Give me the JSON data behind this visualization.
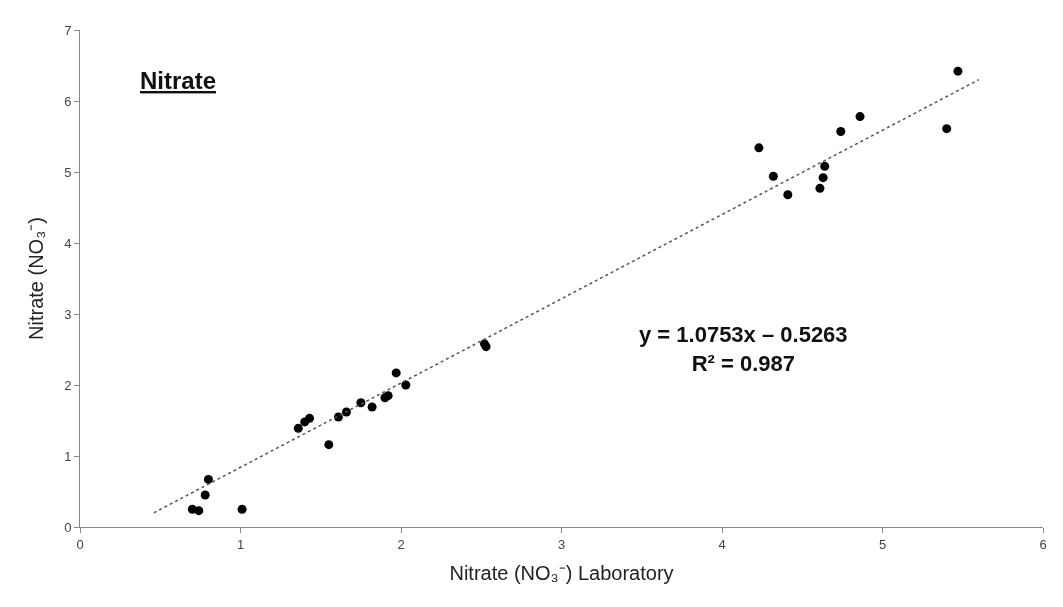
{
  "chart_data": {
    "type": "scatter",
    "title": "Nitrate",
    "xlabel": "Nitrate (NO₃⁻) Laboratory",
    "ylabel": "Nitrate (NO₃⁻)",
    "annotations": [
      "y = 1.0753x – 0.5263",
      "R² = 0.987"
    ],
    "xlim": [
      0,
      6
    ],
    "xticks": [
      0,
      1,
      2,
      3,
      4,
      5,
      6
    ],
    "ylim": [
      0,
      7
    ],
    "yticks": [
      0,
      1,
      2,
      3,
      4,
      5,
      6,
      7
    ],
    "marker": "circle",
    "series": [
      {
        "color": "#000000",
        "x": [
          0.7,
          0.74,
          0.78,
          0.8,
          1.01,
          1.36,
          1.4,
          1.43,
          1.55,
          1.61,
          1.66,
          1.75,
          1.82,
          1.9,
          1.92,
          1.97,
          2.03,
          2.52,
          2.53,
          4.23,
          4.32,
          4.41,
          4.61,
          4.63,
          4.64,
          4.74,
          4.86,
          5.4,
          5.47
        ],
        "values": [
          0.25,
          0.23,
          0.45,
          0.67,
          0.25,
          1.39,
          1.48,
          1.53,
          1.16,
          1.55,
          1.62,
          1.75,
          1.69,
          1.82,
          1.85,
          2.17,
          2.0,
          2.58,
          2.54,
          5.34,
          4.94,
          4.68,
          4.77,
          4.92,
          5.08,
          5.57,
          5.78,
          5.61,
          6.42
        ]
      },
      {
        "type": "line",
        "color": "#555555",
        "line_style": "dotted",
        "marker": "none",
        "x": [
          0.46,
          5.6
        ],
        "values": [
          0.2,
          6.3
        ]
      }
    ]
  }
}
